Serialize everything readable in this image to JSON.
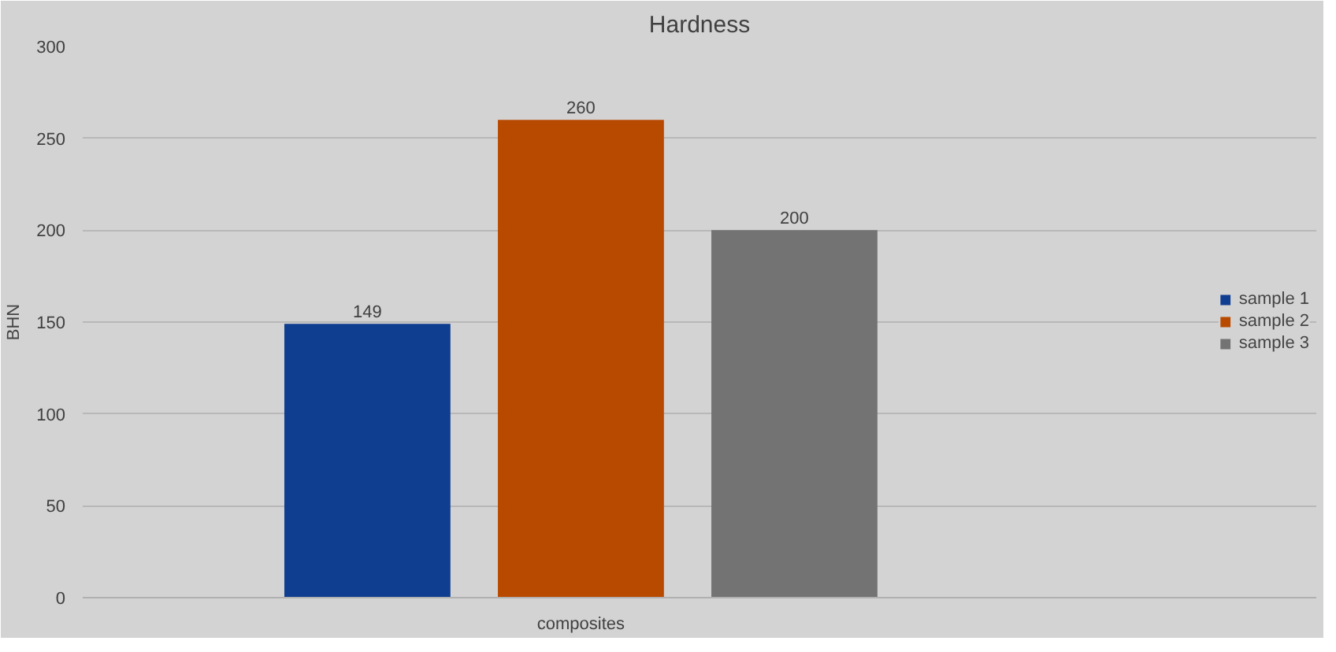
{
  "chart_data": {
    "type": "bar",
    "title": "Hardness",
    "ylabel": "BHN",
    "categories": [
      "composites"
    ],
    "series": [
      {
        "name": "sample 1",
        "color": "#0f3d8f",
        "values": [
          149
        ]
      },
      {
        "name": "sample 2",
        "color": "#b84a00",
        "values": [
          260
        ]
      },
      {
        "name": "sample 3",
        "color": "#737373",
        "values": [
          200
        ]
      }
    ],
    "ylim": [
      0,
      300
    ],
    "yticks": [
      0,
      50,
      100,
      150,
      200,
      250,
      300
    ],
    "grid": "y",
    "legend": "right",
    "data_labels": true
  }
}
